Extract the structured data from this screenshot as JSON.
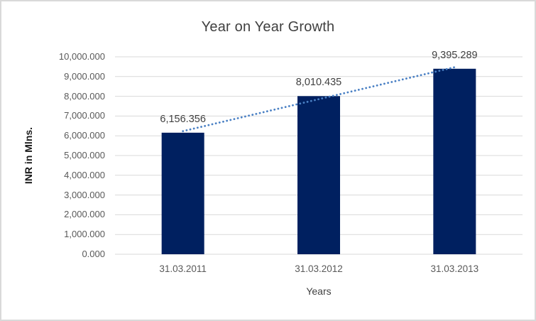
{
  "chart_data": {
    "type": "bar",
    "title": "Year on Year Growth",
    "xlabel": "Years",
    "ylabel": "INR in Mlns.",
    "categories": [
      "31.03.2011",
      "31.03.2012",
      "31.03.2013"
    ],
    "values": [
      6156.356,
      8010.435,
      9395.289
    ],
    "data_labels": [
      "6,156.356",
      "8,010.435",
      "9,395.289"
    ],
    "ylim": [
      0,
      10000
    ],
    "ytick_step": 1000,
    "ytick_labels": [
      "0.000",
      "1,000.000",
      "2,000.000",
      "3,000.000",
      "4,000.000",
      "5,000.000",
      "6,000.000",
      "7,000.000",
      "8,000.000",
      "9,000.000",
      "10,000.000"
    ],
    "grid": true,
    "legend": "none",
    "bar_color": "#002060",
    "gridline_color": "#d9d9d9",
    "border_color": "#d9d9d9",
    "trendline": {
      "type": "linear",
      "style": "dotted",
      "color": "#4a80c4",
      "endpoints_values": [
        6234.56,
        9473.49
      ]
    },
    "text_colors": {
      "title": "#404040",
      "tick": "#595959",
      "data_label": "#404040",
      "axis_title": "#1a1a1a"
    }
  }
}
